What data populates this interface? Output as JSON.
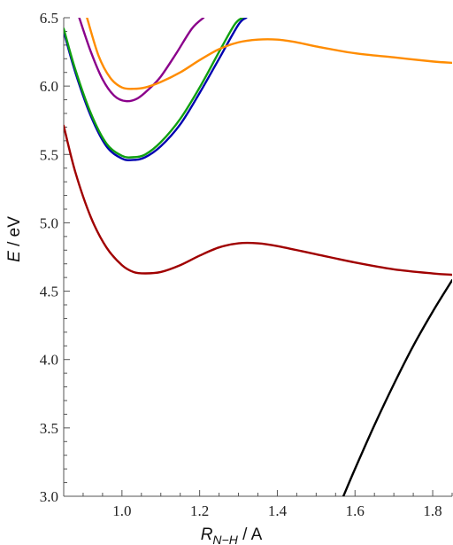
{
  "chart_data": {
    "type": "line",
    "title": "",
    "xlabel": {
      "main": "R",
      "sub": "N−H",
      "unit": " / A"
    },
    "ylabel": {
      "main": "E",
      "unit": " / eV"
    },
    "xlim": [
      0.85,
      1.85
    ],
    "ylim": [
      3.0,
      6.5
    ],
    "x_ticks": [
      1.0,
      1.2,
      1.4,
      1.6,
      1.8
    ],
    "x_tick_labels": [
      "1.0",
      "1.2",
      "1.4",
      "1.6",
      "1.8"
    ],
    "y_ticks": [
      3.0,
      3.5,
      4.0,
      4.5,
      5.0,
      5.5,
      6.0,
      6.5
    ],
    "y_tick_labels": [
      "3.0",
      "3.5",
      "4.0",
      "4.5",
      "5.0",
      "5.5",
      "6.0",
      "6.5"
    ],
    "grid": false,
    "series": [
      {
        "color": "#a00000",
        "x": [
          0.85,
          0.88,
          0.92,
          0.96,
          1.0,
          1.03,
          1.06,
          1.1,
          1.15,
          1.2,
          1.25,
          1.3,
          1.35,
          1.4,
          1.5,
          1.6,
          1.7,
          1.8,
          1.85
        ],
        "y": [
          5.71,
          5.37,
          5.04,
          4.82,
          4.69,
          4.64,
          4.63,
          4.64,
          4.69,
          4.76,
          4.82,
          4.85,
          4.85,
          4.83,
          4.77,
          4.71,
          4.66,
          4.63,
          4.62
        ]
      },
      {
        "color": "#0000b0",
        "x": [
          0.85,
          0.88,
          0.92,
          0.96,
          1.0,
          1.03,
          1.06,
          1.1,
          1.15,
          1.2,
          1.25,
          1.3,
          1.32
        ],
        "y": [
          6.4,
          6.1,
          5.78,
          5.56,
          5.47,
          5.46,
          5.48,
          5.56,
          5.72,
          5.95,
          6.2,
          6.45,
          6.5
        ]
      },
      {
        "color": "#10a010",
        "x": [
          0.85,
          0.88,
          0.92,
          0.96,
          1.0,
          1.03,
          1.06,
          1.1,
          1.15,
          1.2,
          1.25,
          1.29,
          1.31
        ],
        "y": [
          6.42,
          6.12,
          5.8,
          5.58,
          5.49,
          5.48,
          5.5,
          5.59,
          5.76,
          5.99,
          6.25,
          6.45,
          6.5
        ]
      },
      {
        "color": "#8b008b",
        "x": [
          0.89,
          0.92,
          0.95,
          0.98,
          1.01,
          1.04,
          1.07,
          1.1,
          1.14,
          1.18,
          1.21
        ],
        "y": [
          6.5,
          6.25,
          6.05,
          5.93,
          5.89,
          5.91,
          5.98,
          6.07,
          6.24,
          6.42,
          6.5
        ]
      },
      {
        "color": "#ff8c00",
        "x": [
          0.91,
          0.94,
          0.97,
          1.0,
          1.03,
          1.06,
          1.1,
          1.15,
          1.2,
          1.25,
          1.3,
          1.35,
          1.4,
          1.45,
          1.5,
          1.6,
          1.7,
          1.8,
          1.85
        ],
        "y": [
          6.5,
          6.22,
          6.06,
          5.99,
          5.98,
          5.99,
          6.03,
          6.1,
          6.19,
          6.27,
          6.32,
          6.34,
          6.34,
          6.32,
          6.29,
          6.24,
          6.21,
          6.18,
          6.17
        ]
      },
      {
        "color": "#000000",
        "x": [
          1.57,
          1.6,
          1.65,
          1.7,
          1.75,
          1.8,
          1.85
        ],
        "y": [
          3.0,
          3.2,
          3.52,
          3.82,
          4.1,
          4.35,
          4.58
        ]
      }
    ]
  }
}
